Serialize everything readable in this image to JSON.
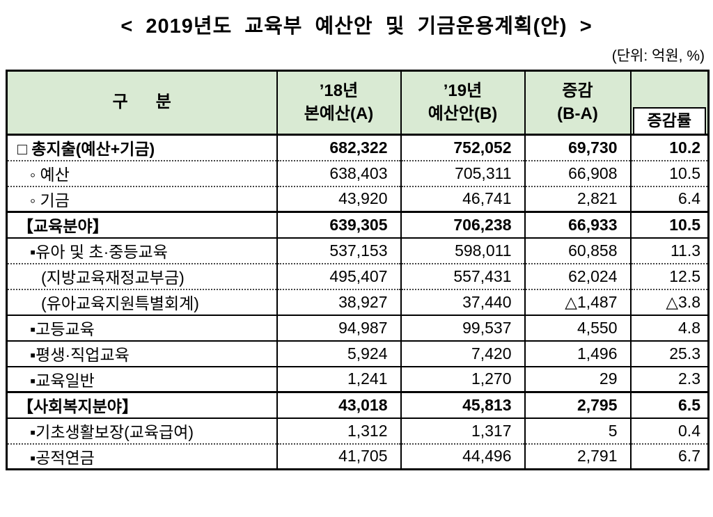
{
  "title": "<  2019년도  교육부  예산안  및  기금운용계획(안)  >",
  "unit_note": "(단위:  억원,  %)",
  "table": {
    "headers": {
      "category": "구      분",
      "col_a_line1": "’18년",
      "col_a_line2": "본예산(A)",
      "col_b_line1": "’19년",
      "col_b_line2": "예산안(B)",
      "diff_line1": "증감",
      "diff_line2": "(B-A)",
      "rate": "증감률"
    },
    "rows": [
      {
        "category": "□ 총지출(예산+기금)",
        "a": "682,322",
        "b": "752,052",
        "diff": "69,730",
        "rate": "10.2",
        "bold": true,
        "indent": 0,
        "border_top": "none"
      },
      {
        "category": "◦ 예산",
        "a": "638,403",
        "b": "705,311",
        "diff": "66,908",
        "rate": "10.5",
        "bold": false,
        "indent": 1,
        "border_top": "dotted"
      },
      {
        "category": "◦ 기금",
        "a": "43,920",
        "b": "46,741",
        "diff": "2,821",
        "rate": "6.4",
        "bold": false,
        "indent": 1,
        "border_top": "dotted"
      },
      {
        "category": "【교육분야】",
        "a": "639,305",
        "b": "706,238",
        "diff": "66,933",
        "rate": "10.5",
        "bold": true,
        "indent": 0,
        "border_top": "section"
      },
      {
        "category": "▪유아 및 초·중등교육",
        "a": "537,153",
        "b": "598,011",
        "diff": "60,858",
        "rate": "11.3",
        "bold": false,
        "indent": 1,
        "border_top": "solid"
      },
      {
        "category": "(지방교육재정교부금)",
        "a": "495,407",
        "b": "557,431",
        "diff": "62,024",
        "rate": "12.5",
        "bold": false,
        "indent": 2,
        "border_top": "dotted"
      },
      {
        "category": "(유아교육지원특별회계)",
        "a": "38,927",
        "b": "37,440",
        "diff": "△1,487",
        "rate": "△3.8",
        "bold": false,
        "indent": 2,
        "border_top": "dotted"
      },
      {
        "category": "▪고등교육",
        "a": "94,987",
        "b": "99,537",
        "diff": "4,550",
        "rate": "4.8",
        "bold": false,
        "indent": 1,
        "border_top": "solid"
      },
      {
        "category": "▪평생·직업교육",
        "a": "5,924",
        "b": "7,420",
        "diff": "1,496",
        "rate": "25.3",
        "bold": false,
        "indent": 1,
        "border_top": "solid"
      },
      {
        "category": "▪교육일반",
        "a": "1,241",
        "b": "1,270",
        "diff": "29",
        "rate": "2.3",
        "bold": false,
        "indent": 1,
        "border_top": "solid"
      },
      {
        "category": "【사회복지분야】",
        "a": "43,018",
        "b": "45,813",
        "diff": "2,795",
        "rate": "6.5",
        "bold": true,
        "indent": 0,
        "border_top": "section"
      },
      {
        "category": "▪기초생활보장(교육급여)",
        "a": "1,312",
        "b": "1,317",
        "diff": "5",
        "rate": "0.4",
        "bold": false,
        "indent": 1,
        "border_top": "solid"
      },
      {
        "category": "▪공적연금",
        "a": "41,705",
        "b": "44,496",
        "diff": "2,791",
        "rate": "6.7",
        "bold": false,
        "indent": 1,
        "border_top": "dotted"
      }
    ]
  },
  "colors": {
    "header_bg": "#d9ead3",
    "border": "#000000"
  }
}
